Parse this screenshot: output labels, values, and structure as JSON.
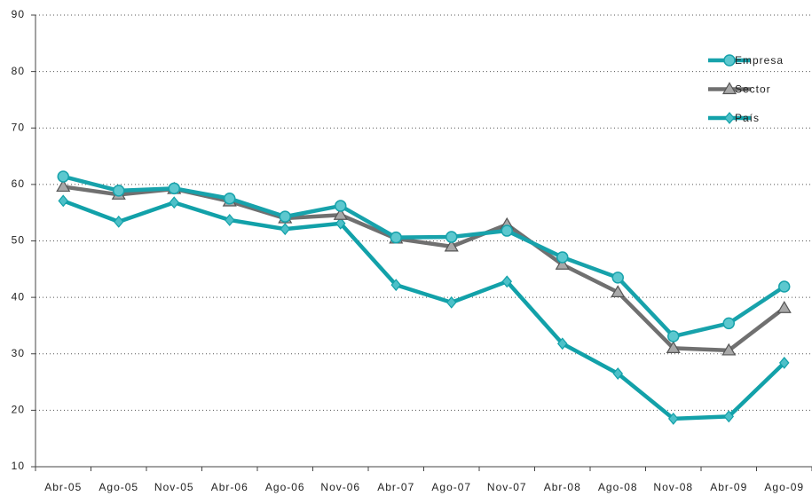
{
  "chart_data": {
    "type": "line",
    "categories": [
      "Abr-05",
      "Ago-05",
      "Nov-05",
      "Abr-06",
      "Ago-06",
      "Nov-06",
      "Abr-07",
      "Ago-07",
      "Nov-07",
      "Abr-08",
      "Ago-08",
      "Nov-08",
      "Abr-09",
      "Ago-09"
    ],
    "series": [
      {
        "name": "Empresa",
        "color": "#17a2ab",
        "marker": "circle",
        "values": [
          61.4,
          58.9,
          59.3,
          57.5,
          54.3,
          56.2,
          50.6,
          50.7,
          51.8,
          47.1,
          43.5,
          33.1,
          35.4,
          41.9
        ]
      },
      {
        "name": "Sector",
        "color": "#707070",
        "marker": "triangle",
        "values": [
          59.6,
          58.2,
          59.2,
          57.0,
          54.0,
          54.6,
          50.4,
          49.0,
          52.9,
          45.8,
          40.9,
          31.0,
          30.6,
          38.1
        ]
      },
      {
        "name": "País",
        "color": "#12a1a9",
        "marker": "diamond",
        "values": [
          57.1,
          53.4,
          56.8,
          53.7,
          52.1,
          53.1,
          42.2,
          39.1,
          42.8,
          31.8,
          26.5,
          18.5,
          18.9,
          28.4
        ]
      }
    ],
    "ylim": [
      10,
      90
    ],
    "yticks": [
      10,
      20,
      30,
      40,
      50,
      60,
      70,
      80,
      90
    ],
    "grid": true,
    "legend": "top-right"
  }
}
